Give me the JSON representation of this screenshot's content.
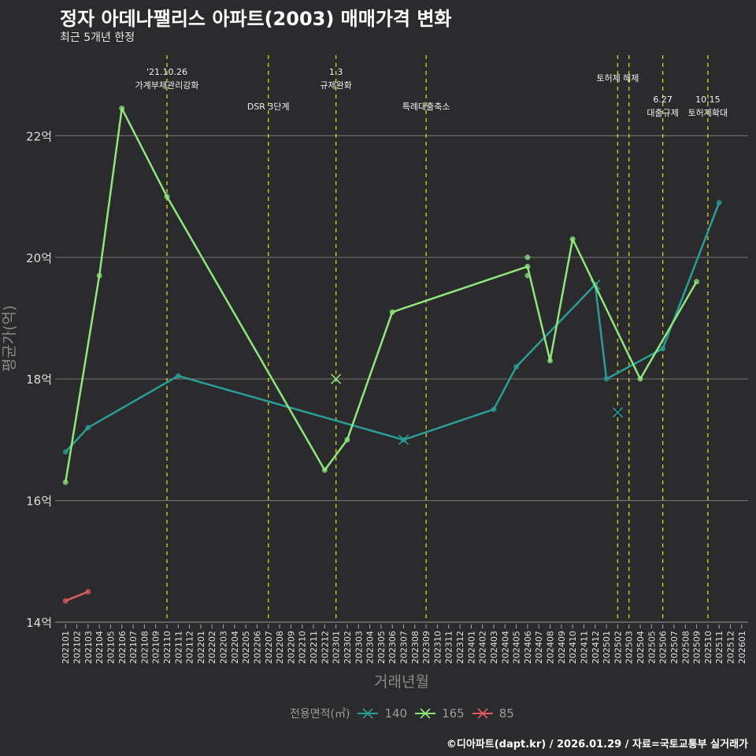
{
  "chart_data": {
    "type": "line",
    "title": "정자 아데나팰리스 아파트(2003) 매매가격 변화",
    "subtitle": "최근 5개년 한정",
    "xlabel": "거래년월",
    "ylabel": "평균가(억)",
    "ylim": [
      14,
      23.5
    ],
    "yticks": [
      14,
      16,
      18,
      20,
      22
    ],
    "ytick_suffix": "억",
    "x_start": "202101",
    "x_end": "202601",
    "legend_title": "전용면적(㎡)",
    "legend_position": "bottom",
    "series": [
      {
        "name": "140",
        "color": "#2a9d96",
        "points": [
          [
            "202101",
            16.8
          ],
          [
            "202103",
            17.2
          ],
          [
            "202111",
            18.05
          ],
          [
            "202307",
            17.0
          ],
          [
            "202403",
            17.5
          ],
          [
            "202405",
            18.2
          ],
          [
            "202412",
            19.55
          ],
          [
            "202501",
            18.0
          ],
          [
            "202506",
            18.5
          ],
          [
            "202511",
            20.9
          ]
        ],
        "cancelled": [
          [
            "202307",
            17.0
          ],
          [
            "202412",
            19.55
          ],
          [
            "202502",
            17.45
          ]
        ]
      },
      {
        "name": "165",
        "color": "#8ee67c",
        "points": [
          [
            "202101",
            16.3
          ],
          [
            "202104",
            19.7
          ],
          [
            "202106",
            22.45
          ],
          [
            "202110",
            21.0
          ],
          [
            "202212",
            16.5
          ],
          [
            "202302",
            17.0
          ],
          [
            "202306",
            19.1
          ],
          [
            "202406",
            19.85
          ],
          [
            "202408",
            18.3
          ],
          [
            "202410",
            20.3
          ],
          [
            "202504",
            18.0
          ],
          [
            "202509",
            19.6
          ]
        ],
        "extra_points": [
          [
            "202406",
            20.0
          ],
          [
            "202406",
            19.7
          ]
        ],
        "cancelled": [
          [
            "202301",
            18.0
          ]
        ]
      },
      {
        "name": "85",
        "color": "#e35a5f",
        "points": [
          [
            "202101",
            14.35
          ],
          [
            "202103",
            14.5
          ]
        ],
        "cancelled": []
      }
    ],
    "events": [
      {
        "month": "202110",
        "lines": [
          "'21.10.26",
          "가계부채관리강화"
        ],
        "row": 0
      },
      {
        "month": "202207",
        "lines": [
          "DSR 3단계"
        ],
        "row": 2
      },
      {
        "month": "202301",
        "lines": [
          "1.3",
          "규제완화"
        ],
        "row": 0
      },
      {
        "month": "202309",
        "lines": [
          "특례대출축소"
        ],
        "row": 2
      },
      {
        "month": "202502",
        "lines": [
          "토허제 해제"
        ],
        "row": 1
      },
      {
        "month": "202503",
        "lines": [],
        "row": 1
      },
      {
        "month": "202506",
        "lines": [
          "6.27",
          "대출규제"
        ],
        "row": 3
      },
      {
        "month": "202510",
        "lines": [
          "10.15",
          "토허제확대"
        ],
        "row": 3
      }
    ]
  },
  "caption": "©디아파트(dapt.kr) / 2026.01.29 / 자료=국토교통부 실거래가"
}
